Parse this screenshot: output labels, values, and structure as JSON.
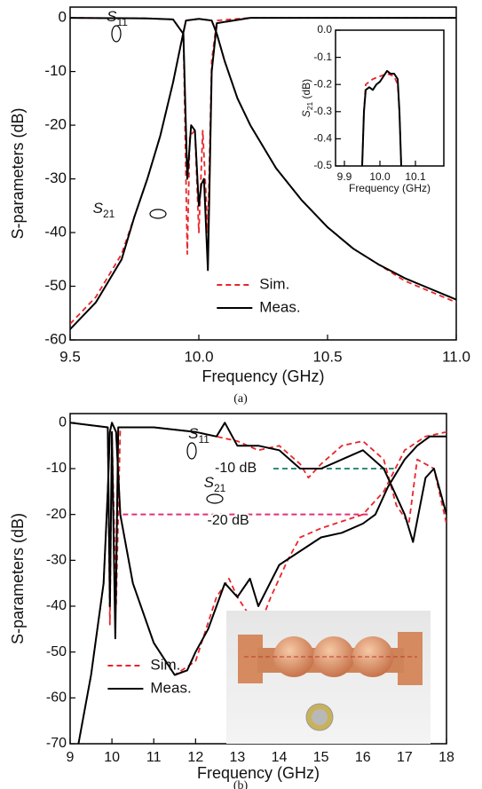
{
  "chart_data": [
    {
      "type": "line",
      "ylabel": "S-parameters (dB)",
      "xlabel": "Frequency (GHz)",
      "caption": "(a)",
      "xlim": [
        9.5,
        11.0
      ],
      "ylim": [
        -60,
        2
      ],
      "xticks": [
        9.5,
        {
          "value": 10,
          "label": "10.0"
        },
        10.5,
        {
          "value": 11,
          "label": "11.0"
        }
      ],
      "yticks": [
        0,
        -10,
        -20,
        -30,
        -40,
        -50,
        -60
      ],
      "legend": "lower center",
      "annotations": [
        {
          "text": "S",
          "sub": "11"
        },
        {
          "text": "S",
          "sub": "21"
        }
      ],
      "series": [
        {
          "name": "Sim.",
          "color": "#e8262a",
          "dashed": true,
          "curves": [
            {
              "x": [
                9.5,
                9.8,
                9.9,
                9.94,
                9.955,
                9.965,
                9.985,
                10.0,
                10.015,
                10.035,
                10.05,
                10.07,
                10.2,
                10.6,
                11.0
              ],
              "values": [
                0,
                -0.1,
                -0.3,
                -3,
                -44,
                -22,
                -21,
                -40,
                -21,
                -40,
                -8,
                -0.5,
                0,
                0,
                0
              ]
            },
            {
              "x": [
                9.5,
                9.6,
                9.7,
                9.75,
                9.8,
                9.85,
                9.9,
                9.93,
                9.95,
                10.0,
                10.05,
                10.07,
                10.1,
                10.15,
                10.2,
                10.3,
                10.4,
                10.5,
                10.6,
                10.7,
                10.8,
                10.9,
                11.0
              ],
              "values": [
                -57,
                -52,
                -44,
                -37,
                -30,
                -22,
                -12,
                -5,
                -0.5,
                -0.2,
                -0.5,
                -3,
                -8,
                -15,
                -20,
                -28,
                -34,
                -39,
                -43,
                -46,
                -49,
                -51,
                -53
              ]
            }
          ]
        },
        {
          "name": "Meas.",
          "color": "#000000",
          "dashed": false,
          "curves": [
            {
              "x": [
                9.5,
                9.8,
                9.9,
                9.94,
                9.955,
                9.97,
                9.985,
                10.0,
                10.01,
                10.02,
                10.035,
                10.05,
                10.07,
                10.2,
                10.6,
                11.0
              ],
              "values": [
                0,
                -0.1,
                -0.3,
                -3,
                -30,
                -20,
                -21,
                -35,
                -31,
                -30,
                -47,
                -10,
                -1,
                0,
                0,
                0
              ]
            },
            {
              "x": [
                9.5,
                9.6,
                9.7,
                9.75,
                9.8,
                9.85,
                9.9,
                9.93,
                9.95,
                10.0,
                10.05,
                10.07,
                10.1,
                10.15,
                10.2,
                10.3,
                10.4,
                10.5,
                10.6,
                10.7,
                10.8,
                10.9,
                11.0
              ],
              "values": [
                -58,
                -53,
                -45,
                -37,
                -30,
                -22,
                -12,
                -5,
                -0.5,
                -0.2,
                -0.5,
                -3,
                -8,
                -15,
                -20,
                -28,
                -34,
                -39,
                -43,
                -46,
                -48.5,
                -50.5,
                -52.5
              ]
            }
          ]
        }
      ]
    },
    {
      "type": "line",
      "ylabel": {
        "text": "S",
        "sub": "21",
        "suffix": " (dB)"
      },
      "xlabel": "Frequency (GHz)",
      "xlim": [
        9.875,
        10.18
      ],
      "ylim": [
        -0.5,
        0
      ],
      "xticks": [
        9.9,
        {
          "value": 10,
          "label": "10.0"
        },
        10.1
      ],
      "yticks": [
        {
          "value": 0,
          "label": "0.0"
        },
        -0.1,
        -0.2,
        -0.3,
        -0.4,
        -0.5
      ],
      "series": [
        {
          "color": "#e8262a",
          "dashed": true,
          "curves": [
            {
              "x": [
                9.95,
                9.955,
                9.96,
                9.98,
                10.0,
                10.02,
                10.04,
                10.05,
                10.055,
                10.06
              ],
              "values": [
                -0.5,
                -0.3,
                -0.2,
                -0.18,
                -0.17,
                -0.16,
                -0.17,
                -0.2,
                -0.3,
                -0.5
              ]
            }
          ]
        },
        {
          "color": "#000000",
          "dashed": false,
          "curves": [
            {
              "x": [
                9.95,
                9.955,
                9.96,
                9.97,
                9.98,
                9.99,
                10.0,
                10.01,
                10.02,
                10.03,
                10.04,
                10.05,
                10.055,
                10.06
              ],
              "values": [
                -0.5,
                -0.3,
                -0.22,
                -0.21,
                -0.22,
                -0.2,
                -0.19,
                -0.17,
                -0.15,
                -0.16,
                -0.16,
                -0.18,
                -0.3,
                -0.5
              ]
            }
          ]
        }
      ]
    },
    {
      "type": "line",
      "ylabel": "S-parameters (dB)",
      "xlabel": "Frequency (GHz)",
      "caption": "(b)",
      "xlim": [
        9,
        18
      ],
      "ylim": [
        -70,
        2
      ],
      "xticks": [
        9,
        10,
        11,
        12,
        13,
        14,
        15,
        16,
        17,
        18
      ],
      "yticks": [
        0,
        -10,
        -20,
        -30,
        -40,
        -50,
        -60,
        -70
      ],
      "legend": "lower left",
      "annotations": [
        {
          "text": "S",
          "sub": "11"
        },
        {
          "text": "S",
          "sub": "21"
        }
      ],
      "reference_lines": [
        {
          "label": "-10 dB",
          "value": -10,
          "color": "#2e8b7a"
        },
        {
          "label": "-20 dB",
          "value": -20,
          "color": "#e0307a"
        }
      ],
      "series": [
        {
          "name": "Sim.",
          "color": "#e8262a",
          "dashed": true,
          "curves": [
            {
              "x": [
                9,
                9.9,
                9.95,
                10.0,
                10.1,
                10.2,
                11,
                12,
                13,
                13.5,
                14,
                14.5,
                14.7,
                15,
                15.5,
                16,
                16.5,
                16.8,
                17.1,
                17.3,
                17.7,
                18
              ],
              "values": [
                0,
                -1,
                -44,
                -2,
                -40,
                -1,
                -1,
                -2,
                -4,
                -6,
                -5,
                -9,
                -12,
                -9,
                -5,
                -4,
                -8,
                -18,
                -22,
                -8,
                -10,
                -22
              ]
            },
            {
              "x": [
                9.2,
                9.5,
                9.8,
                9.9,
                9.95,
                10.0,
                10.1,
                10.2,
                10.5,
                11,
                11.5,
                12,
                12.5,
                12.8,
                13,
                13.5,
                13.8,
                14.2,
                14.5,
                15,
                16,
                16.5,
                17,
                17.5,
                18
              ],
              "values": [
                -70,
                -55,
                -35,
                -15,
                -2,
                0,
                -2,
                -20,
                -35,
                -48,
                -55,
                -52,
                -38,
                -34,
                -38,
                -45,
                -38,
                -30,
                -25,
                -23,
                -20,
                -15,
                -6,
                -3,
                -2
              ]
            }
          ]
        },
        {
          "name": "Meas.",
          "color": "#000000",
          "dashed": false,
          "curves": [
            {
              "x": [
                9,
                9.9,
                9.95,
                10.0,
                10.08,
                10.15,
                11,
                12,
                12.5,
                12.7,
                13,
                13.5,
                14,
                14.5,
                15,
                15.5,
                16,
                16.5,
                17,
                17.2,
                17.5,
                17.7,
                18
              ],
              "values": [
                0,
                -1,
                -40,
                -2,
                -47,
                -1,
                -1,
                -2,
                -3,
                0,
                -5,
                -5,
                -6,
                -10,
                -10,
                -8,
                -6,
                -10,
                -20,
                -26,
                -12,
                -10,
                -20
              ]
            },
            {
              "x": [
                9.2,
                9.5,
                9.8,
                9.9,
                9.95,
                10.0,
                10.1,
                10.2,
                10.5,
                11,
                11.5,
                11.8,
                12,
                12.3,
                12.5,
                12.7,
                12.8,
                13,
                13.3,
                13.5,
                14,
                14.5,
                15,
                15.5,
                16,
                16.3,
                16.6,
                17,
                17.3,
                17.6,
                18
              ],
              "values": [
                -70,
                -55,
                -35,
                -15,
                -2,
                0,
                -2,
                -20,
                -35,
                -48,
                -55,
                -54,
                -50,
                -45,
                -40,
                -35,
                -36,
                -38,
                -34,
                -40,
                -31,
                -28,
                -25,
                -24,
                -22,
                -20,
                -14,
                -8,
                -5,
                -3,
                -3
              ]
            }
          ]
        }
      ]
    }
  ]
}
